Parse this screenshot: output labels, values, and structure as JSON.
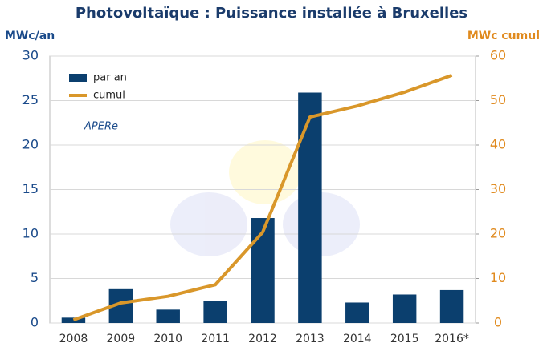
{
  "chart_data": {
    "type": "bar_line",
    "title": "Photovoltaïque : Puissance installée à Bruxelles",
    "y_label": "MWc/an",
    "y2_label": "MWc cumul",
    "logo_text": "APERe",
    "categories": [
      "2008",
      "2009",
      "2010",
      "2011",
      "2012",
      "2013",
      "2014",
      "2015",
      "2016*"
    ],
    "series": [
      {
        "name": "par an",
        "type": "bar",
        "color": "#0b3f6e",
        "values": [
          0.6,
          3.8,
          1.5,
          2.5,
          11.8,
          25.9,
          2.3,
          3.2,
          3.7
        ]
      },
      {
        "name": "cumul",
        "type": "line",
        "axis": "y2",
        "color": "#d9972a",
        "values": [
          0.7,
          4.5,
          6.0,
          8.6,
          20.4,
          46.3,
          48.8,
          51.9,
          55.7
        ]
      }
    ],
    "ylim": [
      0,
      30
    ],
    "yticks": [
      0,
      5,
      10,
      15,
      20,
      25,
      30
    ],
    "y2lim": [
      0,
      60
    ],
    "y2ticks": [
      0,
      10,
      20,
      30,
      40,
      50,
      60
    ],
    "grid": true,
    "legend": "top-left"
  }
}
